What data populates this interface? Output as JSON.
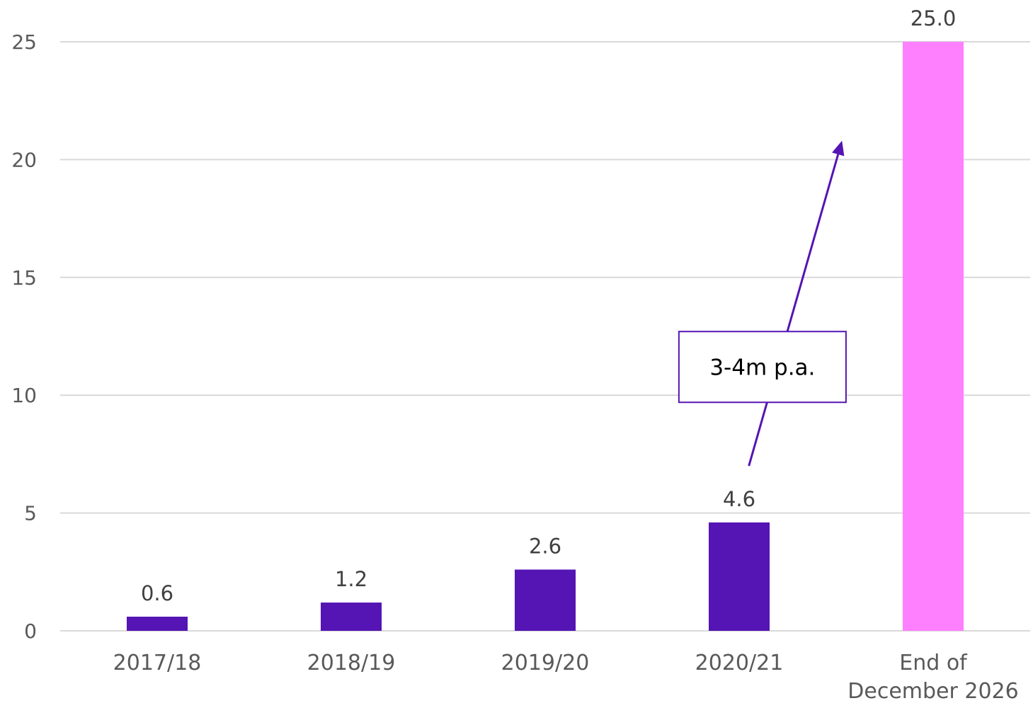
{
  "chart_data": {
    "type": "bar",
    "categories": [
      [
        "2017/18"
      ],
      [
        "2018/19"
      ],
      [
        "2019/20"
      ],
      [
        "2020/21"
      ],
      [
        "End of",
        "December 2026"
      ]
    ],
    "values": [
      0.6,
      1.2,
      2.6,
      4.6,
      25.0
    ],
    "data_labels": [
      "0.6",
      "1.2",
      "2.6",
      "4.6",
      "25.0"
    ],
    "bar_colors": [
      "#5514b4",
      "#5514b4",
      "#5514b4",
      "#5514b4",
      "#ff80ff"
    ],
    "ylim": [
      0,
      25
    ],
    "yticks": [
      0,
      5,
      10,
      15,
      20,
      25
    ],
    "grid": true,
    "annotation": {
      "text": "3-4m p.a.",
      "color": "#5514b4",
      "arrow": {
        "from": {
          "category_index": 3.05,
          "value": 7
        },
        "to": {
          "category_index": 3.53,
          "value": 20.8
        }
      },
      "box_center": {
        "category_index": 3.12,
        "value": 11.2
      }
    }
  }
}
